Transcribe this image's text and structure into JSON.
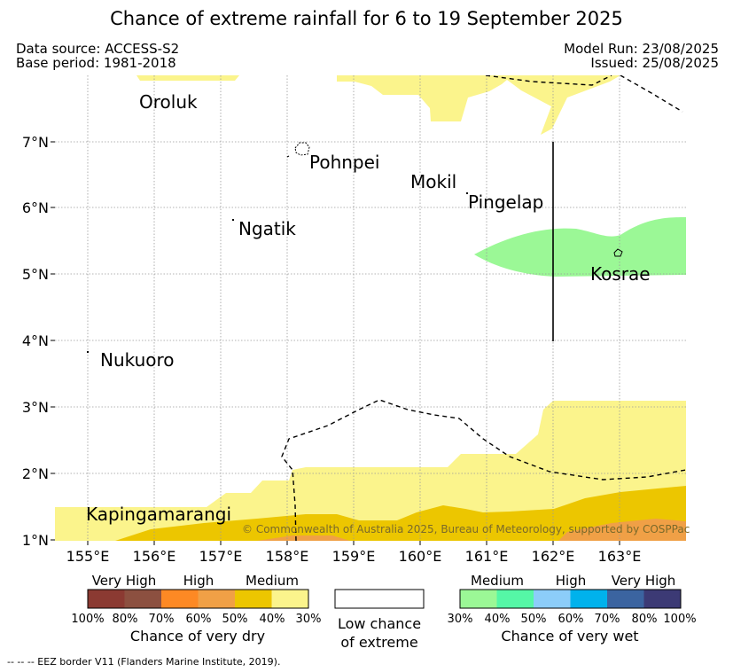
{
  "title": "Chance of extreme rainfall for 6 to 19 September 2025",
  "meta": {
    "data_source": "Data source: ACCESS-S2",
    "base_period": "Base period: 1981-2018",
    "model_run": "Model Run: 23/08/2025",
    "issued": "Issued: 25/08/2025"
  },
  "map": {
    "lon_ticks": [
      "155°E",
      "156°E",
      "157°E",
      "158°E",
      "159°E",
      "160°E",
      "161°E",
      "162°E",
      "163°E"
    ],
    "lat_ticks": [
      "7°N",
      "6°N",
      "5°N",
      "4°N",
      "3°N",
      "2°N",
      "1°N"
    ],
    "places": [
      "Oroluk",
      "Pohnpei",
      "Mokil",
      "Pingelap",
      "Ngatik",
      "Kosrae",
      "Nukuoro",
      "Kapingamarangi"
    ],
    "copyright": "© Commonwealth of Australia 2025, Bureau of Meteorology, supported by COSPPac",
    "colors": {
      "dry_30_40": "#fbf48c",
      "dry_40_50": "#ecc600",
      "dry_50_60": "#f0a046",
      "wet_30_40": "#9bf896"
    }
  },
  "legend": {
    "dry": {
      "categories": [
        "Very High",
        "High",
        "Medium"
      ],
      "ticks": [
        "100%",
        "80%",
        "70%",
        "60%",
        "50%",
        "40%",
        "30%"
      ],
      "colors": [
        "#8b3a32",
        "#8c5040",
        "#fd8924",
        "#f0a046",
        "#ecc600",
        "#fbf48c"
      ],
      "label": "Chance of very dry"
    },
    "low": {
      "label_line1": "Low chance",
      "label_line2": "of extreme",
      "color": "#ffffff"
    },
    "wet": {
      "categories": [
        "Medium",
        "High",
        "Very High"
      ],
      "ticks": [
        "30%",
        "40%",
        "50%",
        "60%",
        "70%",
        "80%",
        "100%"
      ],
      "colors": [
        "#9bf896",
        "#55f7a6",
        "#8ccdf9",
        "#00b2ec",
        "#3b64a0",
        "#3c3a75"
      ],
      "label": "Chance of very wet"
    }
  },
  "footnote": "--  --  -- EEZ border V11 (Flanders Marine Institute, 2019)."
}
